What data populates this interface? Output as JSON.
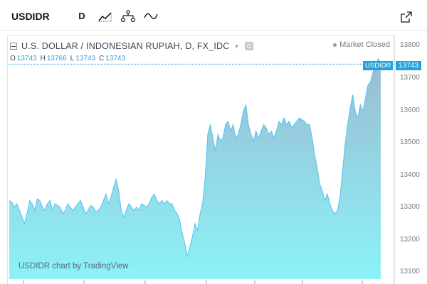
{
  "toolbar": {
    "symbol": "USDIDR",
    "interval": "D",
    "icons": [
      "bar-style-icon",
      "indicators-icon",
      "compare-icon"
    ]
  },
  "legend": {
    "title": "U.S. DOLLAR / INDONESIAN RUPIAH, D, FX_IDC",
    "market_status": "Market Closed",
    "ohlc": [
      {
        "key": "O",
        "value": "13743"
      },
      {
        "key": "H",
        "value": "13766"
      },
      {
        "key": "L",
        "value": "13743"
      },
      {
        "key": "C",
        "value": "13743"
      }
    ]
  },
  "watermark": "USDIDR chart by TradingView",
  "price_scale": {
    "labels": [
      "13800",
      "13700",
      "13600",
      "13500",
      "13400",
      "13300",
      "13200",
      "13100"
    ],
    "last_price": "13743",
    "symbol_tag": "USDIDR"
  },
  "colors": {
    "accent": "#26a2db",
    "line": "#4fc3f7",
    "area_top": "#9bbbd2",
    "area_bottom": "#8cf2f7"
  },
  "chart_data": {
    "type": "area",
    "series": [
      {
        "values": [
          13330,
          13325,
          13310,
          13320,
          13300,
          13280,
          13260,
          13290,
          13330,
          13320,
          13300,
          13335,
          13330,
          13310,
          13300,
          13320,
          13330,
          13300,
          13320,
          13315,
          13310,
          13290,
          13300,
          13320,
          13310,
          13300,
          13310,
          13320,
          13330,
          13310,
          13290,
          13300,
          13315,
          13310,
          13295,
          13300,
          13310,
          13330,
          13350,
          13320,
          13340,
          13370,
          13395,
          13360,
          13300,
          13280,
          13300,
          13320,
          13310,
          13300,
          13310,
          13300,
          13320,
          13315,
          13310,
          13320,
          13340,
          13350,
          13330,
          13320,
          13330,
          13320,
          13330,
          13320,
          13320,
          13300,
          13290,
          13270,
          13230,
          13200,
          13160,
          13190,
          13220,
          13260,
          13240,
          13290,
          13320,
          13400,
          13530,
          13560,
          13520,
          13480,
          13530,
          13510,
          13520,
          13560,
          13570,
          13540,
          13560,
          13520,
          13530,
          13560,
          13600,
          13620,
          13560,
          13530,
          13510,
          13540,
          13520,
          13540,
          13560,
          13550,
          13530,
          13540,
          13520,
          13540,
          13570,
          13560,
          13580,
          13560,
          13570,
          13550,
          13560,
          13570,
          13580,
          13575,
          13570,
          13560,
          13560,
          13520,
          13470,
          13430,
          13380,
          13360,
          13330,
          13350,
          13320,
          13300,
          13290,
          13300,
          13340,
          13420,
          13500,
          13560,
          13610,
          13650,
          13600,
          13580,
          13620,
          13600,
          13640,
          13680,
          13690,
          13720,
          13740,
          13760,
          13743
        ]
      }
    ],
    "ylim": [
      13092,
      13832
    ]
  }
}
